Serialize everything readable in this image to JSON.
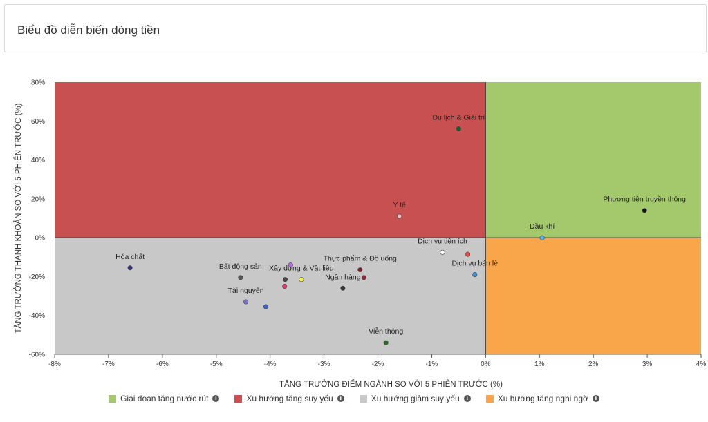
{
  "header": {
    "title": "Biểu đồ diễn biến dòng tiền"
  },
  "chart_data": {
    "type": "scatter",
    "xlabel": "TĂNG TRƯỞNG ĐIỂM NGÀNH SO VỚI 5 PHIÊN TRƯỚC (%)",
    "ylabel": "TĂNG TRƯỞNG THANH KHOẢN SO VỚI 5 PHIÊN TRƯỚC (%)",
    "xlim": [
      -8,
      4
    ],
    "ylim": [
      -60,
      80
    ],
    "xticks": [
      -8,
      -7,
      -6,
      -5,
      -4,
      -3,
      -2,
      -1,
      0,
      1,
      2,
      3,
      4
    ],
    "yticks": [
      80,
      60,
      40,
      20,
      0,
      -20,
      -40,
      -60
    ],
    "xtick_labels": [
      "-8%",
      "-7%",
      "-6%",
      "-5%",
      "-4%",
      "-3%",
      "-2%",
      "-1%",
      "0%",
      "1%",
      "2%",
      "3%",
      "4%"
    ],
    "ytick_labels": [
      "80%",
      "60%",
      "40%",
      "20%",
      "0%",
      "-20%",
      "-40%",
      "-60%"
    ],
    "quadrants": [
      {
        "name": "Giai đoạn tăng nước rút",
        "color": "#a4c96c",
        "region": "top-right"
      },
      {
        "name": "Xu hướng tăng suy yếu",
        "color": "#c85050",
        "region": "top-left"
      },
      {
        "name": "Xu hướng giảm suy yếu",
        "color": "#c8c8c8",
        "region": "bottom-left"
      },
      {
        "name": "Xu hướng tăng nghi ngờ",
        "color": "#f9a64b",
        "region": "bottom-right"
      }
    ],
    "points": [
      {
        "label": "Du lịch & Giải trí",
        "x": -0.5,
        "y": 56,
        "color": "#1a5c2a"
      },
      {
        "label": "Phương tiện truyền thông",
        "x": 2.95,
        "y": 14,
        "color": "#111111"
      },
      {
        "label": "Y tế",
        "x": -1.6,
        "y": 11,
        "color": "#f2b8c0"
      },
      {
        "label": "Dầu khí",
        "x": 1.05,
        "y": 0,
        "color": "#4fb3e8"
      },
      {
        "label": "Dịch vụ tiện ích",
        "x": -0.8,
        "y": -7.5,
        "color": "#ffffff"
      },
      {
        "label": "",
        "x": -0.33,
        "y": -8.5,
        "color": "#e8504a"
      },
      {
        "label": "Dịch vụ bán lẻ",
        "x": -0.2,
        "y": -19,
        "color": "#3d8fd6"
      },
      {
        "label": "Hóa chất",
        "x": -6.6,
        "y": -15.5,
        "color": "#2d2d7a"
      },
      {
        "label": "Bất động sản",
        "x": -4.55,
        "y": -20.5,
        "color": "#555555"
      },
      {
        "label": "",
        "x": -3.62,
        "y": -14,
        "color": "#b86ee0"
      },
      {
        "label": "",
        "x": -3.72,
        "y": -21.5,
        "color": "#444444"
      },
      {
        "label": "Xây dựng & Vật liệu",
        "x": -3.42,
        "y": -21.5,
        "color": "#f5f542"
      },
      {
        "label": "",
        "x": -3.73,
        "y": -25,
        "color": "#e8336e"
      },
      {
        "label": "Thực phẩm & Đồ uống",
        "x": -2.33,
        "y": -16.5,
        "color": "#7a1f2a"
      },
      {
        "label": "",
        "x": -2.26,
        "y": -20.5,
        "color": "#8a2a3a"
      },
      {
        "label": "Ngân hàng",
        "x": -2.65,
        "y": -26,
        "color": "#333333"
      },
      {
        "label": "Tài nguyên",
        "x": -4.45,
        "y": -33,
        "color": "#7a72d8"
      },
      {
        "label": "",
        "x": -4.08,
        "y": -35.5,
        "color": "#3a66c4"
      },
      {
        "label": "Viễn thông",
        "x": -1.85,
        "y": -54,
        "color": "#2f6e2a"
      }
    ]
  },
  "legend": {
    "items": [
      {
        "label": "Giai đoạn tăng nước rút",
        "color": "#a4c96c"
      },
      {
        "label": "Xu hướng tăng suy yếu",
        "color": "#c85050"
      },
      {
        "label": "Xu hướng giảm suy yếu",
        "color": "#c8c8c8"
      },
      {
        "label": "Xu hướng tăng nghi ngờ",
        "color": "#f9a64b"
      }
    ]
  }
}
